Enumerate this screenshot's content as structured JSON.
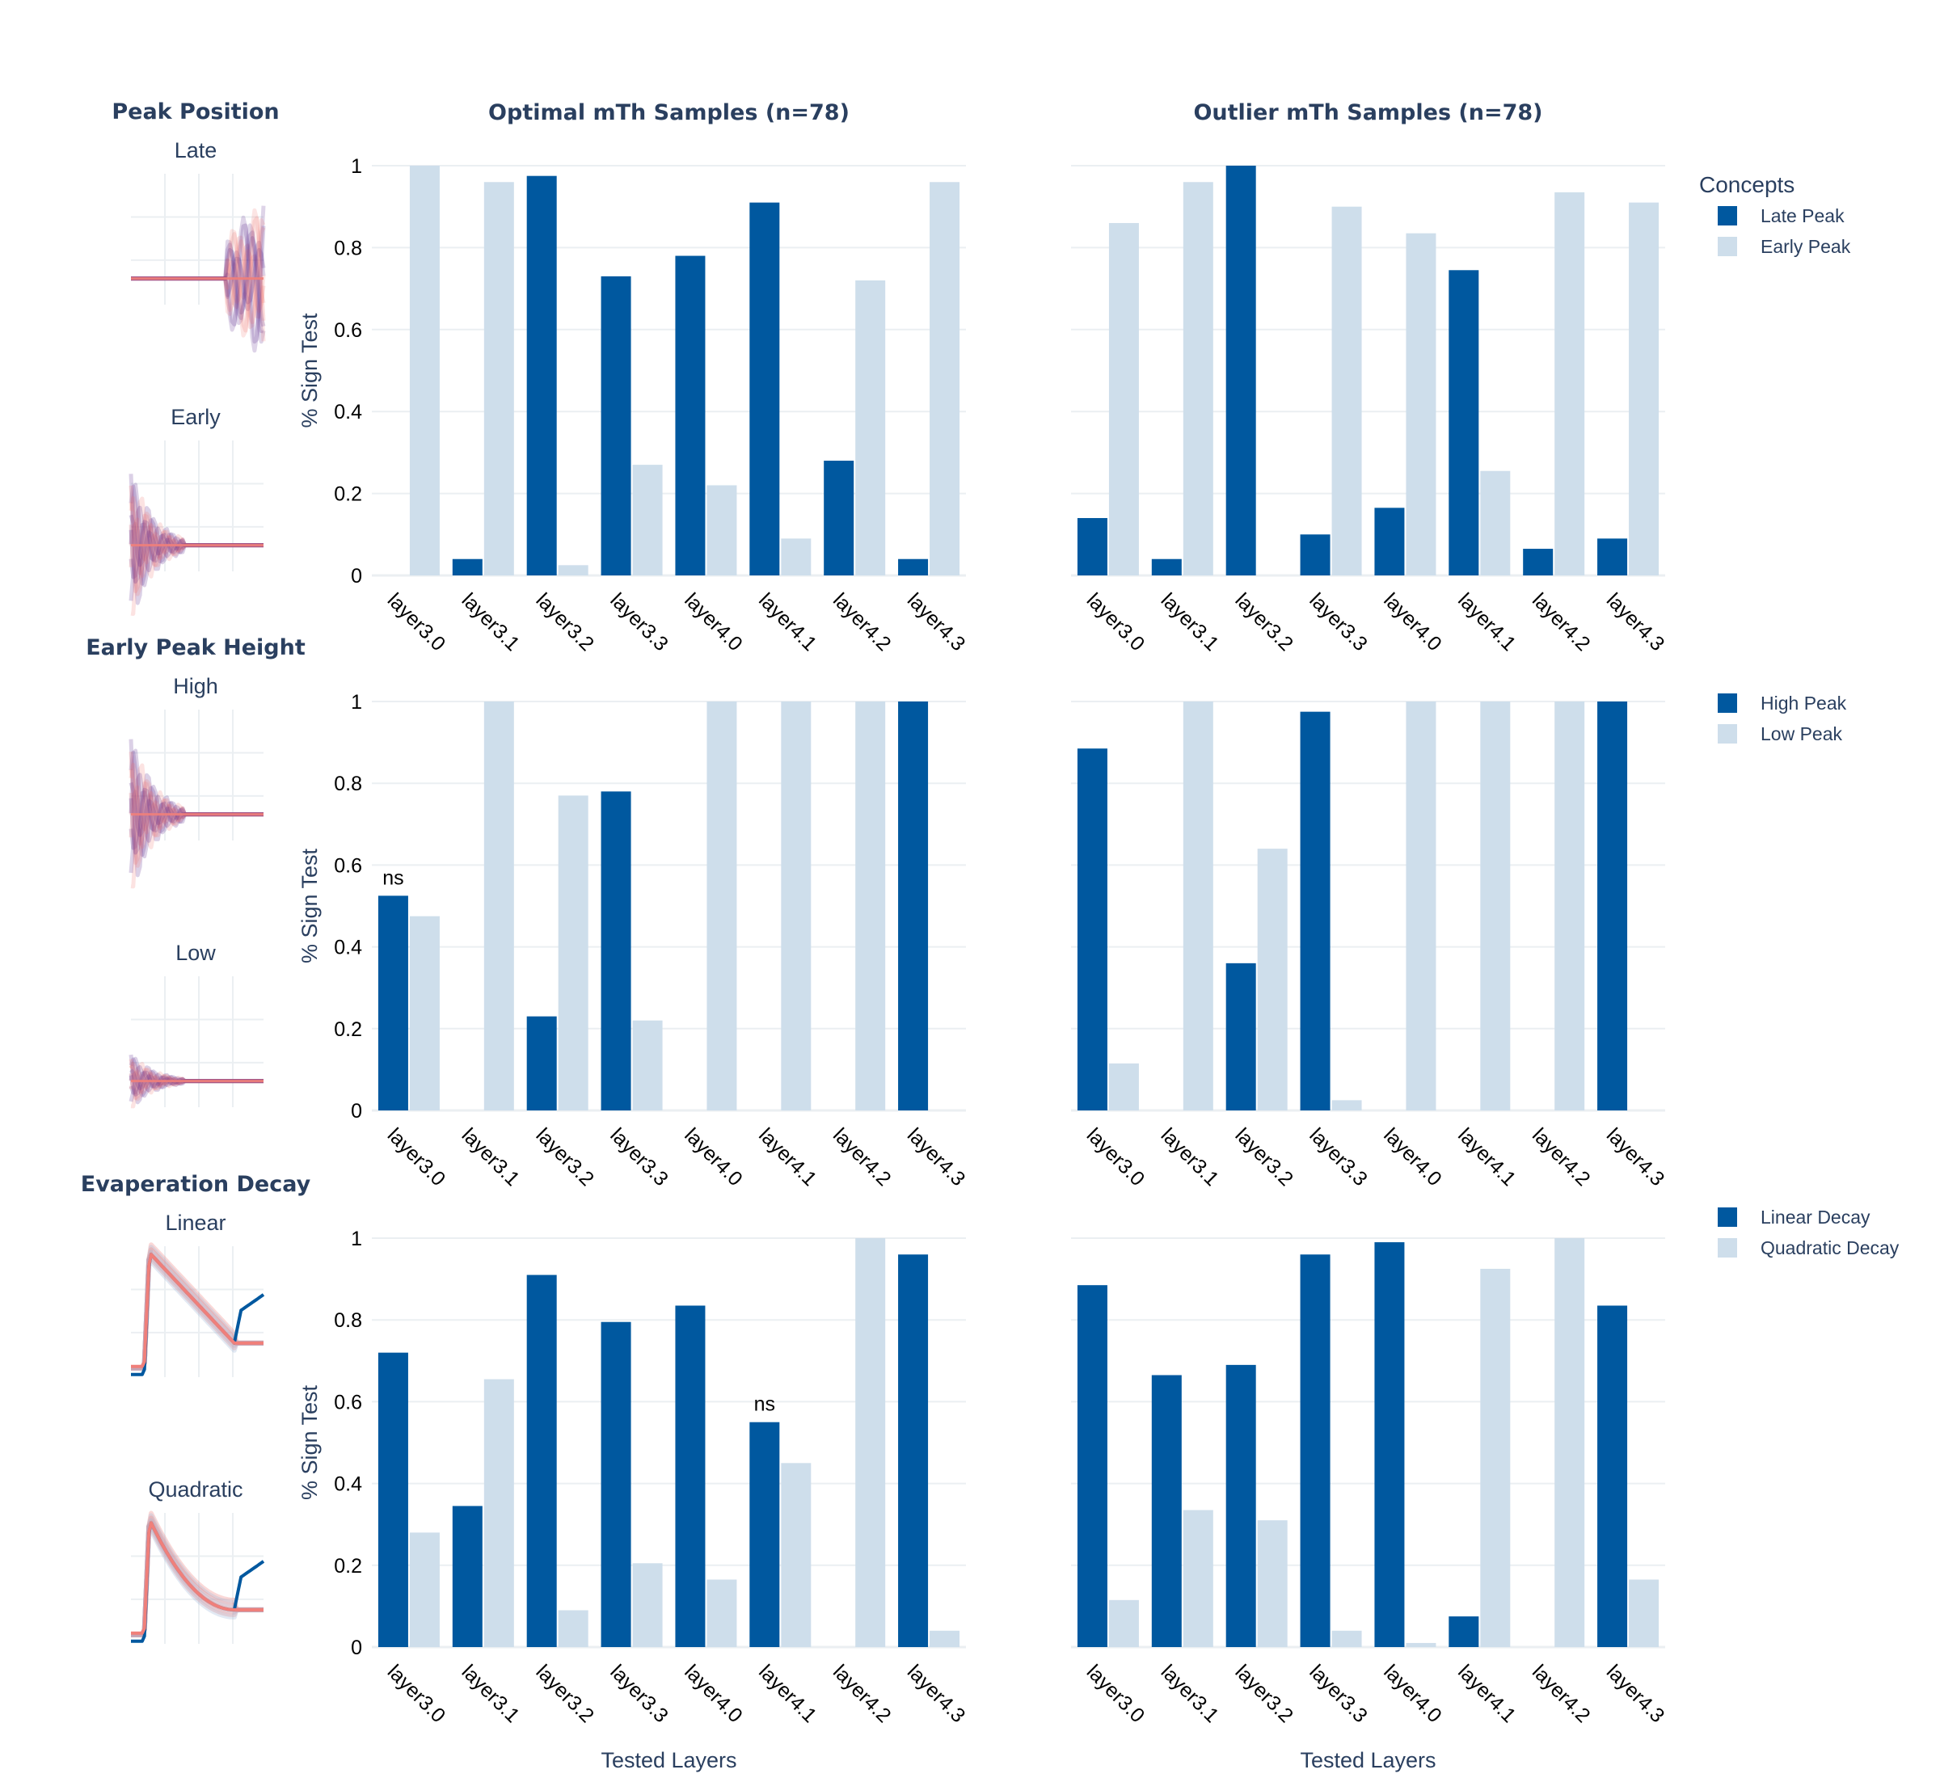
{
  "layers": [
    "layer3.0",
    "layer3.1",
    "layer3.2",
    "layer3.3",
    "layer4.0",
    "layer4.1",
    "layer4.2",
    "layer4.3"
  ],
  "column_titles": [
    "Optimal mTh Samples (n=78)",
    "Outlier mTh Samples (n=78)"
  ],
  "y_axis_label": "% Sign Test",
  "x_axis_label": "Tested Layers",
  "y_ticks": [
    "0",
    "0.2",
    "0.4",
    "0.6",
    "0.8",
    "1"
  ],
  "legend_title": "Concepts",
  "colors": {
    "dark": "#00589f",
    "light": "#cedeeb",
    "purple": "#5b2a8c",
    "salmon": "#f07f7a",
    "text": "#2a3f5f"
  },
  "rows": [
    {
      "side_title": "Peak Position",
      "thumb_labels": [
        "Late",
        "Early"
      ],
      "thumb_kinds": [
        "late",
        "early"
      ],
      "legend": [
        "Late Peak",
        "Early Peak"
      ],
      "ylim": [
        0,
        1
      ],
      "panels": [
        {
          "dark": [
            0.0,
            0.04,
            0.975,
            0.73,
            0.78,
            0.91,
            0.28,
            0.04
          ],
          "light": [
            1.0,
            0.96,
            0.025,
            0.27,
            0.22,
            0.09,
            0.72,
            0.96
          ],
          "annotations": []
        },
        {
          "dark": [
            0.14,
            0.04,
            1.0,
            0.1,
            0.165,
            0.745,
            0.065,
            0.09
          ],
          "light": [
            0.86,
            0.96,
            0.0,
            0.9,
            0.835,
            0.255,
            0.935,
            0.91
          ],
          "annotations": []
        }
      ]
    },
    {
      "side_title": "Early Peak Height",
      "thumb_labels": [
        "High",
        "Low"
      ],
      "thumb_kinds": [
        "high",
        "low"
      ],
      "legend": [
        "High Peak",
        "Low Peak"
      ],
      "ylim": [
        0,
        1
      ],
      "panels": [
        {
          "dark": [
            0.525,
            0.0,
            0.23,
            0.78,
            0.0,
            0.0,
            0.0,
            1.0
          ],
          "light": [
            0.475,
            1.0,
            0.77,
            0.22,
            1.0,
            1.0,
            1.0,
            0.0
          ],
          "annotations": [
            {
              "index": 0,
              "text": "ns"
            }
          ]
        },
        {
          "dark": [
            0.885,
            0.0,
            0.36,
            0.975,
            0.0,
            0.0,
            0.0,
            1.0
          ],
          "light": [
            0.115,
            1.0,
            0.64,
            0.025,
            1.0,
            1.0,
            1.0,
            0.0
          ],
          "annotations": []
        }
      ]
    },
    {
      "side_title": "Evaperation Decay",
      "thumb_labels": [
        "Linear",
        "Quadratic"
      ],
      "thumb_kinds": [
        "linear",
        "quadratic"
      ],
      "legend": [
        "Linear Decay",
        "Quadratic Decay"
      ],
      "ylim": [
        0,
        1
      ],
      "panels": [
        {
          "dark": [
            0.72,
            0.345,
            0.91,
            0.795,
            0.835,
            0.55,
            0.0,
            0.96
          ],
          "light": [
            0.28,
            0.655,
            0.09,
            0.205,
            0.165,
            0.45,
            1.0,
            0.04
          ],
          "annotations": [
            {
              "index": 5,
              "text": "ns"
            }
          ]
        },
        {
          "dark": [
            0.885,
            0.665,
            0.69,
            0.96,
            0.99,
            0.075,
            0.0,
            0.835
          ],
          "light": [
            0.115,
            0.335,
            0.31,
            0.04,
            0.01,
            0.925,
            1.0,
            0.165
          ],
          "annotations": []
        }
      ]
    }
  ],
  "chart_data": {
    "type": "bar",
    "categories": [
      "layer3.0",
      "layer3.1",
      "layer3.2",
      "layer3.3",
      "layer4.0",
      "layer4.1",
      "layer4.2",
      "layer4.3"
    ],
    "ylabel": "% Sign Test",
    "xlabel": "Tested Layers",
    "ylim": [
      0,
      1
    ],
    "legend_placement": "right",
    "grid": true
  }
}
